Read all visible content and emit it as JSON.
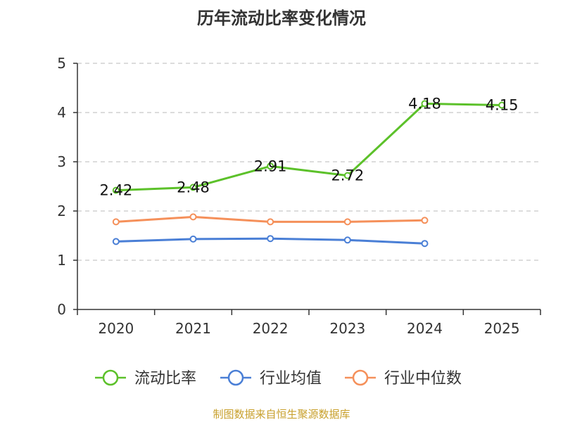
{
  "chart_data": {
    "type": "line",
    "title": "历年流动比率变化情况",
    "categories": [
      "2020",
      "2021",
      "2022",
      "2023",
      "2024",
      "2025"
    ],
    "ylim": [
      0,
      5
    ],
    "yticks": [
      0,
      1,
      2,
      3,
      4,
      5
    ],
    "grid": true,
    "legend_position": "bottom",
    "series": [
      {
        "name": "流动比率",
        "color": "#5cc12a",
        "values": [
          2.42,
          2.48,
          2.91,
          2.72,
          4.18,
          4.15
        ],
        "labels": [
          "2.42",
          "2.48",
          "2.91",
          "2.72",
          "4.18",
          "4.15"
        ]
      },
      {
        "name": "行业均值",
        "color": "#4a7fd6",
        "values": [
          1.38,
          1.43,
          1.44,
          1.41,
          1.34,
          null
        ]
      },
      {
        "name": "行业中位数",
        "color": "#f5905a",
        "values": [
          1.78,
          1.88,
          1.78,
          1.78,
          1.81,
          null
        ]
      }
    ]
  },
  "source_text": "制图数据来自恒生聚源数据库"
}
